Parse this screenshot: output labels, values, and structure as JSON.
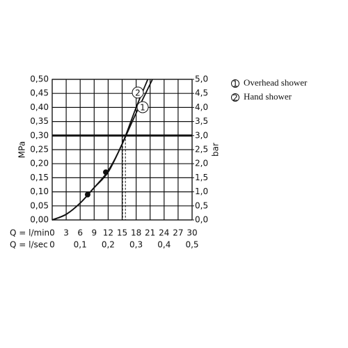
{
  "chart_data": {
    "type": "line",
    "ylabel": "MPa",
    "y2label": "bar",
    "xlabel": "Q = l/min",
    "x2label": "Q = l/sec",
    "xlim": [
      0,
      30
    ],
    "xticks": [
      0,
      3,
      6,
      9,
      12,
      15,
      18,
      21,
      24,
      27,
      30
    ],
    "x2lim": [
      0,
      0.5
    ],
    "x2ticks": [
      0,
      {
        "value": 0.1,
        "label": "0,1"
      },
      {
        "value": 0.2,
        "label": "0,2"
      },
      {
        "value": 0.3,
        "label": "0,3"
      },
      {
        "value": 0.4,
        "label": "0,4"
      },
      {
        "value": 0.5,
        "label": "0,5"
      }
    ],
    "ylim": [
      0,
      0.5
    ],
    "yticks": [
      {
        "value": 0,
        "label": "0,00"
      },
      {
        "value": 0.05,
        "label": "0,05"
      },
      {
        "value": 0.1,
        "label": "0,10"
      },
      {
        "value": 0.15,
        "label": "0,15"
      },
      {
        "value": 0.2,
        "label": "0,20"
      },
      {
        "value": 0.25,
        "label": "0,25"
      },
      {
        "value": 0.3,
        "label": "0,30"
      },
      {
        "value": 0.35,
        "label": "0,35"
      },
      {
        "value": 0.4,
        "label": "0,40"
      },
      {
        "value": 0.45,
        "label": "0,45"
      },
      {
        "value": 0.5,
        "label": "0,50"
      }
    ],
    "y2lim": [
      0,
      5
    ],
    "y2ticks": [
      {
        "value": 0,
        "label": "0,0"
      },
      {
        "value": 0.5,
        "label": "0,5"
      },
      {
        "value": 1,
        "label": "1,0"
      },
      {
        "value": 1.5,
        "label": "1,5"
      },
      {
        "value": 2,
        "label": "2,0"
      },
      {
        "value": 2.5,
        "label": "2,5"
      },
      {
        "value": 3,
        "label": "3,0"
      },
      {
        "value": 3.5,
        "label": "3,5"
      },
      {
        "value": 4,
        "label": "4,0"
      },
      {
        "value": 4.5,
        "label": "4,5"
      },
      {
        "value": 5,
        "label": "5,0"
      }
    ],
    "grid": true,
    "color": "#111111",
    "reference_y": 0.3,
    "series": [
      {
        "name": "Overhead shower",
        "label": "1",
        "x": [
          0,
          3,
          6,
          9,
          12,
          15,
          18,
          21.5
        ],
        "values": [
          0,
          0.02,
          0.06,
          0.115,
          0.17,
          0.27,
          0.38,
          0.5
        ]
      },
      {
        "name": "Hand shower",
        "label": "2",
        "x": [
          0,
          3,
          6,
          9,
          12,
          15,
          18,
          20.5
        ],
        "values": [
          0,
          0.02,
          0.06,
          0.115,
          0.175,
          0.27,
          0.4,
          0.5
        ]
      }
    ],
    "markers": {
      "x": [
        7.6,
        11.5
      ],
      "values": [
        0.09,
        0.17
      ]
    },
    "dashed_x": [
      15.1,
      15.7
    ]
  }
}
